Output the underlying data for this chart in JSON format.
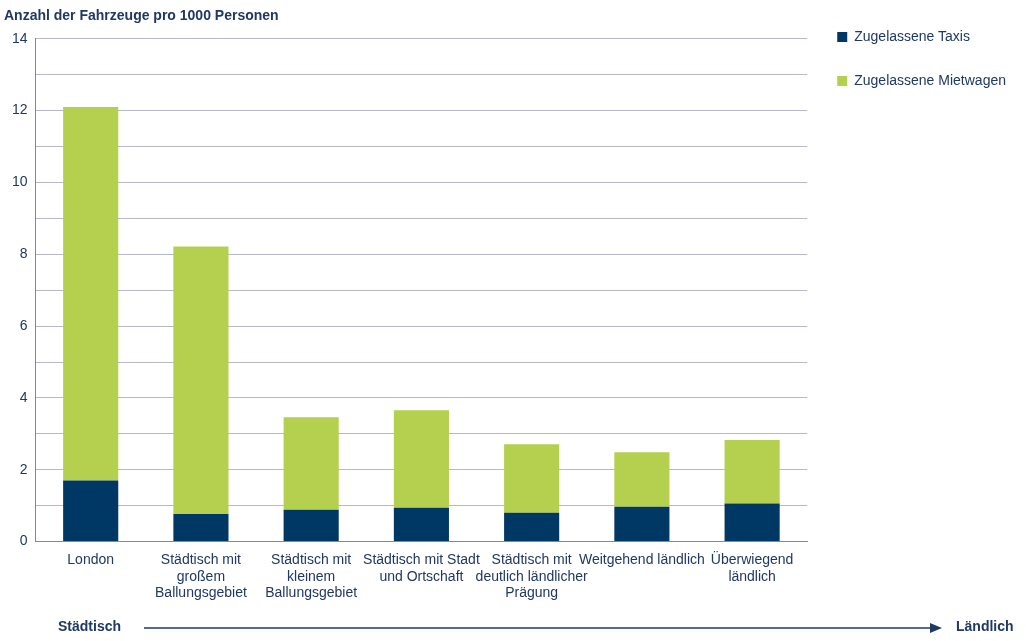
{
  "chart_data": {
    "type": "bar",
    "stacked": true,
    "title": "Anzahl der Fahrzeuge pro 1000 Personen",
    "categories": [
      "London",
      "Städtisch mit großem Ballungsgebiet",
      "Städtisch mit kleinem Ballungsgebiet",
      "Städtisch mit Stadt und Ortschaft",
      "Städtisch mit deutlich ländlicher Prägung",
      "Weitgehend ländlich",
      "Überwiegend ländlich"
    ],
    "series": [
      {
        "name": "Zugelassene Taxis",
        "color": "#003865",
        "values": [
          1.7,
          0.77,
          0.89,
          0.94,
          0.8,
          0.97,
          1.06
        ]
      },
      {
        "name": "Zugelassene Mietwagen",
        "color": "#b5cf4f",
        "values": [
          10.4,
          7.45,
          2.57,
          2.72,
          1.91,
          1.52,
          1.77
        ]
      }
    ],
    "ylim": [
      0,
      14
    ],
    "yticks": [
      0,
      {
        "value": 1,
        "label": null
      },
      2,
      {
        "value": 3,
        "label": null
      },
      4,
      {
        "value": 5,
        "label": null
      },
      6,
      {
        "value": 7,
        "label": null
      },
      8,
      {
        "value": 9,
        "label": null
      },
      10,
      {
        "value": 11,
        "label": null
      },
      12,
      {
        "value": 13,
        "label": null
      },
      14
    ],
    "grid": "y",
    "legend": "right",
    "annotations": [
      "Städtisch",
      "Ländlich"
    ]
  }
}
